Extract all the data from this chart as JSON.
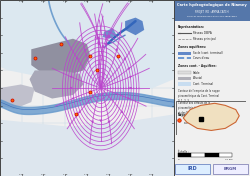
{
  "map_bg": "#c8dce8",
  "land_bg": "#dce8f0",
  "urban1_color": "#9090a0",
  "urban2_color": "#a8a8b8",
  "river_color": "#6699cc",
  "contour_color": "#bb44cc",
  "flow_color": "#bb44cc",
  "blue_patch_color": "#3366bb",
  "panel_bg": "#f0f0f0",
  "title_bg": "#5577aa",
  "grid_color": "#b0c8dc",
  "border_color": "#555555",
  "fig_bg": "#f0f0f0",
  "well_face": "#ff6600",
  "well_edge": "#cc0000",
  "inset_land": "#e8d8b8",
  "inset_border": "#cc6633",
  "dpi": 100
}
